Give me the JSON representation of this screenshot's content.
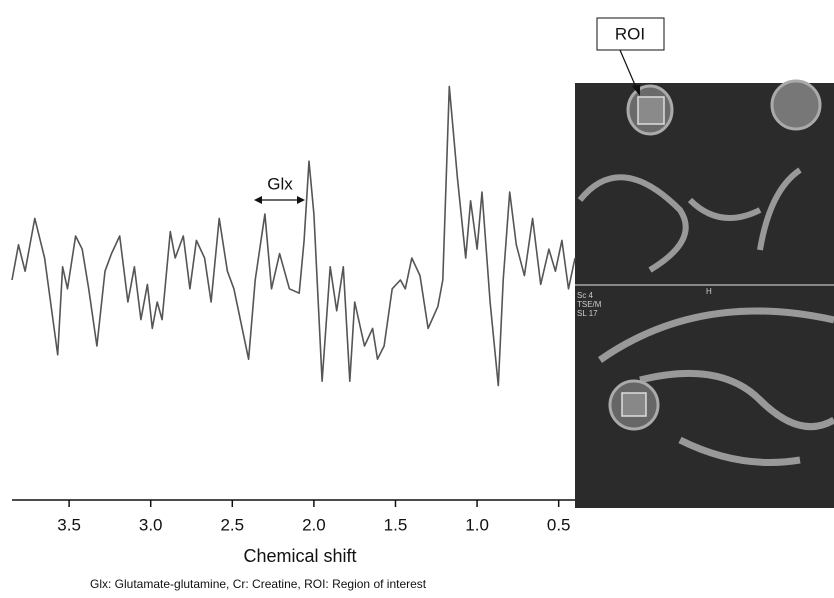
{
  "chart_data": {
    "type": "line",
    "x_label": "Chemical shift",
    "caption": "Glx: Glutamate-glutamine, Cr: Creatine, ROI: Region of interest",
    "annotations": {
      "glx": "Glx",
      "roi": "ROI"
    },
    "image_labels": [
      "Sc 4",
      "TSE/M",
      "SL 17",
      "H"
    ],
    "color": "#555555",
    "x": [
      3.85,
      3.81,
      3.77,
      3.71,
      3.65,
      3.57,
      3.54,
      3.51,
      3.46,
      3.42,
      3.38,
      3.33,
      3.28,
      3.24,
      3.19,
      3.14,
      3.1,
      3.06,
      3.02,
      2.99,
      2.96,
      2.93,
      2.88,
      2.85,
      2.8,
      2.76,
      2.72,
      2.67,
      2.63,
      2.58,
      2.53,
      2.49,
      2.4,
      2.36,
      2.3,
      2.26,
      2.21,
      2.15,
      2.09,
      2.06,
      2.03,
      2.0,
      1.95,
      1.9,
      1.86,
      1.82,
      1.78,
      1.75,
      1.69,
      1.64,
      1.61,
      1.57,
      1.52,
      1.47,
      1.44,
      1.4,
      1.35,
      1.3,
      1.24,
      1.21,
      1.17,
      1.12,
      1.07,
      1.04,
      1.0,
      0.97,
      0.92,
      0.87,
      0.84,
      0.8,
      0.76,
      0.71,
      0.66,
      0.61,
      0.56,
      0.52,
      0.48,
      0.44,
      0.4
    ],
    "values": [
      50,
      58,
      52,
      64,
      55,
      33,
      53,
      48,
      60,
      57,
      48,
      35,
      52,
      56,
      60,
      45,
      53,
      41,
      49,
      39,
      45,
      41,
      61,
      55,
      60,
      48,
      59,
      55,
      45,
      64,
      52,
      48,
      32,
      50,
      65,
      48,
      56,
      48,
      47,
      59,
      77,
      65,
      27,
      53,
      43,
      53,
      27,
      45,
      35,
      39,
      32,
      35,
      48,
      50,
      48,
      55,
      51,
      39,
      44,
      50,
      94,
      73,
      55,
      68,
      57,
      70,
      45,
      26,
      50,
      70,
      58,
      51,
      64,
      49,
      57,
      52,
      59,
      48,
      55
    ],
    "xlim": [
      3.85,
      0.4
    ],
    "ylim": [
      0,
      100
    ],
    "xticks": [
      3.5,
      {
        "value": 3.0,
        "label": "3.0"
      },
      2.5,
      {
        "value": 2.0,
        "label": "2.0"
      },
      1.5,
      {
        "value": 1.0,
        "label": "1.0"
      },
      0.5
    ]
  }
}
